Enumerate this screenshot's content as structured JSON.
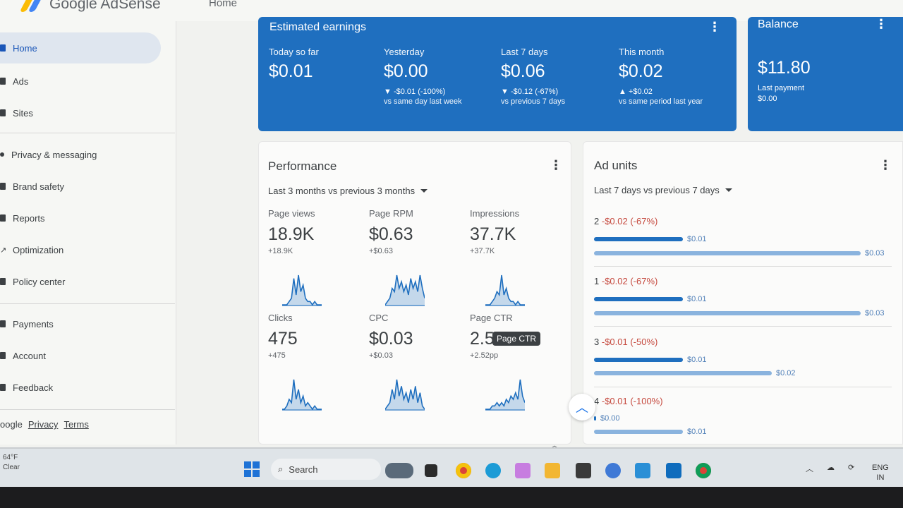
{
  "header": {
    "brand": "Google AdSense",
    "page": "Home"
  },
  "sidebar": {
    "items": [
      {
        "label": "Home",
        "icon": "home-icon",
        "active": true
      },
      {
        "label": "Ads",
        "icon": "ads-icon"
      },
      {
        "label": "Sites",
        "icon": "sites-icon"
      },
      {
        "label": "Privacy & messaging",
        "icon": "privacy-icon"
      },
      {
        "label": "Brand safety",
        "icon": "brand-safety-icon"
      },
      {
        "label": "Reports",
        "icon": "reports-icon"
      },
      {
        "label": "Optimization",
        "icon": "optimization-icon"
      },
      {
        "label": "Policy center",
        "icon": "policy-icon"
      },
      {
        "label": "Payments",
        "icon": "payments-icon"
      },
      {
        "label": "Account",
        "icon": "account-icon"
      },
      {
        "label": "Feedback",
        "icon": "feedback-icon"
      }
    ],
    "footer": {
      "brand": "oogle",
      "privacy": "Privacy",
      "terms": "Terms"
    }
  },
  "earnings": {
    "title": "Estimated earnings",
    "metrics": [
      {
        "label": "Today so far",
        "value": "$0.01",
        "change": "",
        "compare": ""
      },
      {
        "label": "Yesterday",
        "value": "$0.00",
        "change": "▼ -$0.01 (-100%)",
        "compare": "vs same day last week"
      },
      {
        "label": "Last 7 days",
        "value": "$0.06",
        "change": "▼ -$0.12 (-67%)",
        "compare": "vs previous 7 days"
      },
      {
        "label": "This month",
        "value": "$0.02",
        "change": "▲ +$0.02",
        "compare": "vs same period last year"
      }
    ]
  },
  "balance": {
    "title": "Balance",
    "value": "$11.80",
    "last_payment_label": "Last payment",
    "last_payment_value": "$0.00"
  },
  "performance": {
    "title": "Performance",
    "range": "Last 3 months vs previous 3 months",
    "metrics": [
      {
        "label": "Page views",
        "value": "18.9K",
        "change": "+18.9K",
        "spark": [
          0,
          0,
          0,
          1,
          2,
          8,
          3,
          9,
          4,
          6,
          2,
          1,
          1,
          0,
          1,
          0,
          0,
          0
        ]
      },
      {
        "label": "Page RPM",
        "value": "$0.63",
        "change": "+$0.63",
        "spark": [
          0,
          1,
          2,
          5,
          4,
          9,
          5,
          7,
          4,
          6,
          3,
          8,
          5,
          7,
          4,
          9,
          5,
          2
        ]
      },
      {
        "label": "Impressions",
        "value": "37.7K",
        "change": "+37.7K",
        "spark": [
          0,
          0,
          0,
          1,
          2,
          4,
          3,
          9,
          3,
          5,
          2,
          1,
          1,
          0,
          1,
          0,
          0,
          0
        ]
      },
      {
        "label": "Clicks",
        "value": "475",
        "change": "+475",
        "spark": [
          0,
          0,
          1,
          3,
          2,
          9,
          3,
          6,
          2,
          4,
          1,
          2,
          1,
          0,
          1,
          0,
          0,
          0
        ]
      },
      {
        "label": "CPC",
        "value": "$0.03",
        "change": "+$0.03",
        "spark": [
          0,
          1,
          2,
          6,
          3,
          9,
          4,
          7,
          3,
          5,
          2,
          6,
          3,
          7,
          2,
          5,
          1,
          0
        ]
      },
      {
        "label": "Page CTR",
        "value": "2.5",
        "change": "+2.52pp",
        "spark": [
          0,
          0,
          0,
          1,
          1,
          2,
          1,
          2,
          1,
          3,
          2,
          4,
          3,
          5,
          3,
          9,
          4,
          2
        ]
      }
    ],
    "tooltip": "Page CTR"
  },
  "ad_units": {
    "title": "Ad units",
    "range": "Last 7 days vs previous 7 days",
    "units": [
      {
        "rank": "2",
        "change": "-$0.02 (-67%)",
        "current": 0.01,
        "current_label": "$0.01",
        "previous": 0.03,
        "previous_label": "$0.03"
      },
      {
        "rank": "1",
        "change": "-$0.02 (-67%)",
        "current": 0.01,
        "current_label": "$0.01",
        "previous": 0.03,
        "previous_label": "$0.03"
      },
      {
        "rank": "3",
        "change": "-$0.01 (-50%)",
        "current": 0.01,
        "current_label": "$0.01",
        "previous": 0.02,
        "previous_label": "$0.02"
      },
      {
        "rank": "4",
        "change": "-$0.01 (-100%)",
        "current": 0.0,
        "current_label": "$0.00",
        "previous": 0.01,
        "previous_label": "$0.01"
      }
    ]
  },
  "taskbar": {
    "weather_temp": "64°F",
    "weather_desc": "Clear",
    "search": "Search",
    "lang1": "ENG",
    "lang2": "IN"
  },
  "colors": {
    "accent": "#1f6fbf",
    "negative": "#c5483d",
    "prev_bar": "#8ab3de"
  }
}
